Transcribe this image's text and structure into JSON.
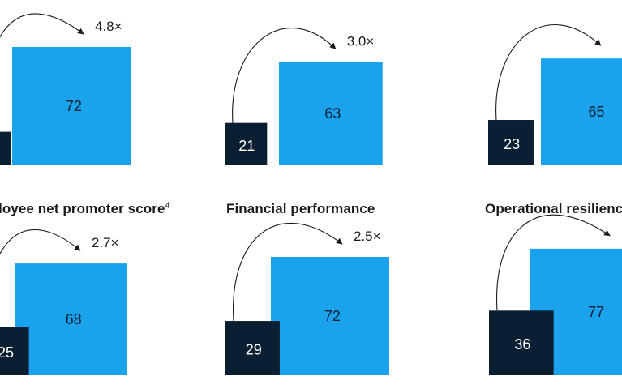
{
  "chart_data": [
    {
      "type": "bar",
      "title": "",
      "values": [
        15,
        72
      ],
      "multiplier": "4.8×",
      "colors": [
        "#0b1f33",
        "#1aa3ec"
      ]
    },
    {
      "type": "bar",
      "title": "",
      "values": [
        21,
        63
      ],
      "multiplier": "3.0×",
      "colors": [
        "#0b1f33",
        "#1aa3ec"
      ]
    },
    {
      "type": "bar",
      "title": "",
      "values": [
        23,
        65
      ],
      "multiplier": "",
      "colors": [
        "#0b1f33",
        "#1aa3ec"
      ]
    },
    {
      "type": "bar",
      "title": "loyee net promoter score",
      "title_footnote": "4",
      "values": [
        25,
        68
      ],
      "multiplier": "2.7×",
      "colors": [
        "#0b1f33",
        "#1aa3ec"
      ]
    },
    {
      "type": "bar",
      "title": "Financial performance",
      "title_footnote": "",
      "values": [
        29,
        72
      ],
      "multiplier": "2.5×",
      "colors": [
        "#0b1f33",
        "#1aa3ec"
      ]
    },
    {
      "type": "bar",
      "title": "Operational resilienc",
      "title_footnote": "",
      "values": [
        36,
        77
      ],
      "multiplier": "",
      "colors": [
        "#0b1f33",
        "#1aa3ec"
      ]
    }
  ],
  "labels": {
    "p0_dark": "",
    "p0_light": "72",
    "p1_dark": "21",
    "p1_light": "63",
    "p2_dark": "23",
    "p2_light": "65",
    "p3_dark": "25",
    "p3_light": "68",
    "p4_dark": "29",
    "p4_light": "72",
    "p5_dark": "36",
    "p5_light": "77"
  }
}
